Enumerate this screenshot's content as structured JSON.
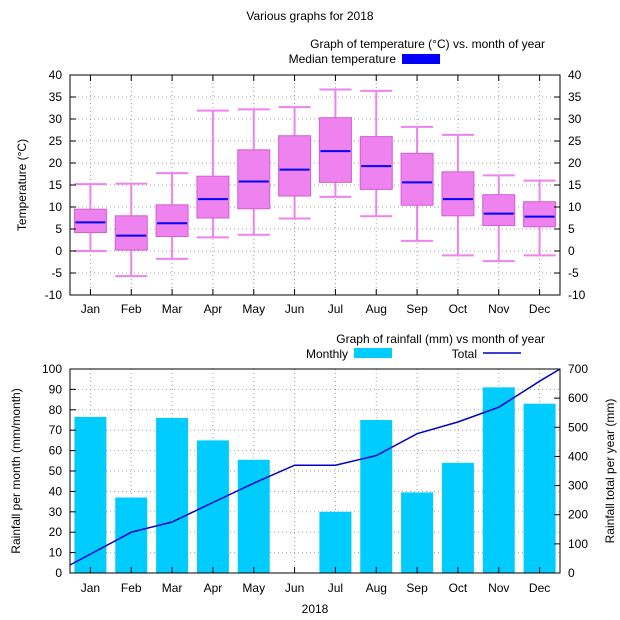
{
  "title": "Various graphs for 2018",
  "chart_data": [
    {
      "type": "boxplot",
      "title": "Graph of temperature (°C) vs. month of year",
      "legend": {
        "label": "Median temperature",
        "color": "#0000ff",
        "placement": "top-right"
      },
      "ylabel": "Temperature (°C)",
      "ylim": [
        -10,
        40
      ],
      "yticks": [
        "-10",
        "-5",
        "0",
        "5",
        "10",
        "15",
        "20",
        "25",
        "30",
        "35",
        "40"
      ],
      "grid": true,
      "box_color": "#ee82ee",
      "median_color": "#0000ff",
      "categories": [
        "Jan",
        "Feb",
        "Mar",
        "Apr",
        "May",
        "Jun",
        "Jul",
        "Aug",
        "Sep",
        "Oct",
        "Nov",
        "Dec"
      ],
      "boxes": [
        {
          "min": 0.0,
          "q1": 4.2,
          "median": 6.5,
          "q3": 9.5,
          "max": 15.2
        },
        {
          "min": -5.7,
          "q1": 0.2,
          "median": 3.5,
          "q3": 8.0,
          "max": 15.3
        },
        {
          "min": -1.8,
          "q1": 3.3,
          "median": 6.3,
          "q3": 10.5,
          "max": 17.7
        },
        {
          "min": 3.1,
          "q1": 7.5,
          "median": 11.8,
          "q3": 17.0,
          "max": 31.9
        },
        {
          "min": 3.7,
          "q1": 9.6,
          "median": 15.8,
          "q3": 23.0,
          "max": 32.2
        },
        {
          "min": 7.4,
          "q1": 12.5,
          "median": 18.5,
          "q3": 26.2,
          "max": 32.7
        },
        {
          "min": 12.3,
          "q1": 15.6,
          "median": 22.7,
          "q3": 30.3,
          "max": 36.7
        },
        {
          "min": 7.9,
          "q1": 14.0,
          "median": 19.3,
          "q3": 26.0,
          "max": 36.4
        },
        {
          "min": 2.3,
          "q1": 10.4,
          "median": 15.6,
          "q3": 22.2,
          "max": 28.2
        },
        {
          "min": -1.0,
          "q1": 8.0,
          "median": 11.8,
          "q3": 18.0,
          "max": 26.4
        },
        {
          "min": -2.3,
          "q1": 5.8,
          "median": 8.5,
          "q3": 12.8,
          "max": 17.2
        },
        {
          "min": -1.0,
          "q1": 5.5,
          "median": 7.8,
          "q3": 11.2,
          "max": 16.0
        }
      ]
    },
    {
      "type": "bar+line",
      "title": "Graph of rainfall (mm) vs month of year",
      "xlabel": "2018",
      "ylabel": "Rainfall per month (mm/month)",
      "y2label": "Rainfall total per year (mm)",
      "ylim": [
        0,
        100
      ],
      "y2lim": [
        0,
        700
      ],
      "yticks": [
        "0",
        "10",
        "20",
        "30",
        "40",
        "50",
        "60",
        "70",
        "80",
        "90",
        "100"
      ],
      "y2ticks": [
        "0",
        "100",
        "200",
        "300",
        "400",
        "500",
        "600",
        "700"
      ],
      "grid": true,
      "legend_placement": "top-right",
      "categories": [
        "Jan",
        "Feb",
        "Mar",
        "Apr",
        "May",
        "Jun",
        "Jul",
        "Aug",
        "Sep",
        "Oct",
        "Nov",
        "Dec"
      ],
      "series": [
        {
          "name": "Monthly",
          "type": "bar",
          "axis": "left",
          "color": "#00ccff",
          "values": [
            76.5,
            37,
            76,
            65,
            55.5,
            0,
            30,
            75,
            39.5,
            54,
            91,
            83
          ]
        },
        {
          "name": "Total",
          "type": "line",
          "axis": "right",
          "color": "#0000cc",
          "values": [
            65,
            140,
            175,
            242,
            308,
            370,
            370,
            403,
            478,
            518,
            569,
            658,
            700
          ],
          "x": [
            0.5,
            1.5,
            2.5,
            3.5,
            4.5,
            5.5,
            6.5,
            7.5,
            8.5,
            9.5,
            10.5,
            11.5,
            12
          ]
        }
      ]
    }
  ]
}
